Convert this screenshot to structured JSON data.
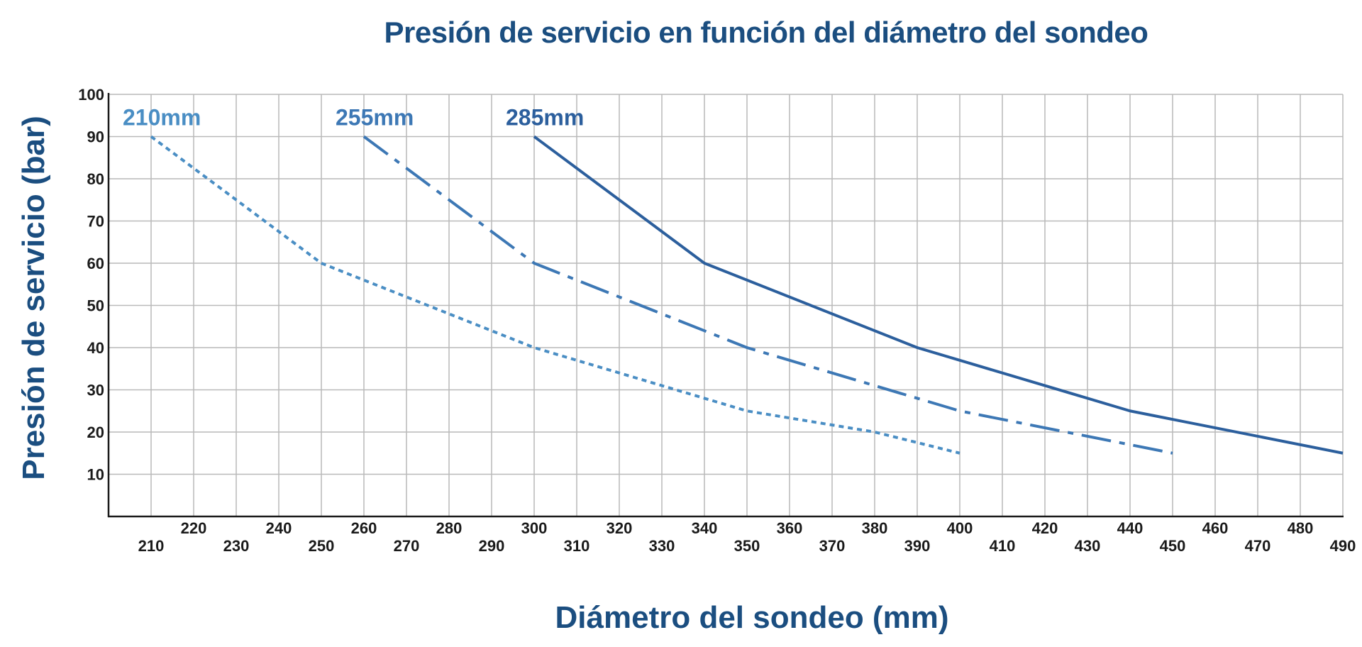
{
  "chart_data": {
    "type": "line",
    "title": "Presión de servicio en función del diámetro del sondeo",
    "xlabel": "Diámetro del sondeo (mm)",
    "ylabel": "Presión de servicio (bar)",
    "xlim": [
      200,
      490
    ],
    "ylim": [
      0,
      100
    ],
    "grid": true,
    "x_ticks": [
      210,
      220,
      230,
      240,
      250,
      260,
      270,
      280,
      290,
      300,
      310,
      320,
      330,
      340,
      350,
      360,
      370,
      380,
      390,
      400,
      410,
      420,
      430,
      440,
      450,
      460,
      470,
      480,
      490
    ],
    "y_ticks": [
      10,
      20,
      30,
      40,
      50,
      60,
      70,
      80,
      90,
      100
    ],
    "series": [
      {
        "name": "210mm",
        "style": "dotted",
        "color": "#4a8ec4",
        "x": [
          210,
          250,
          300,
          340,
          350,
          380,
          400
        ],
        "y": [
          90,
          60,
          40,
          28,
          25,
          20,
          15
        ]
      },
      {
        "name": "255mm",
        "style": "dashdot",
        "color": "#3d78b5",
        "x": [
          260,
          300,
          350,
          400,
          450
        ],
        "y": [
          90,
          60,
          40,
          25,
          15
        ]
      },
      {
        "name": "285mm",
        "style": "solid",
        "color": "#2c5f9d",
        "x": [
          300,
          340,
          390,
          440,
          490
        ],
        "y": [
          90,
          60,
          40,
          25,
          15
        ]
      }
    ]
  }
}
